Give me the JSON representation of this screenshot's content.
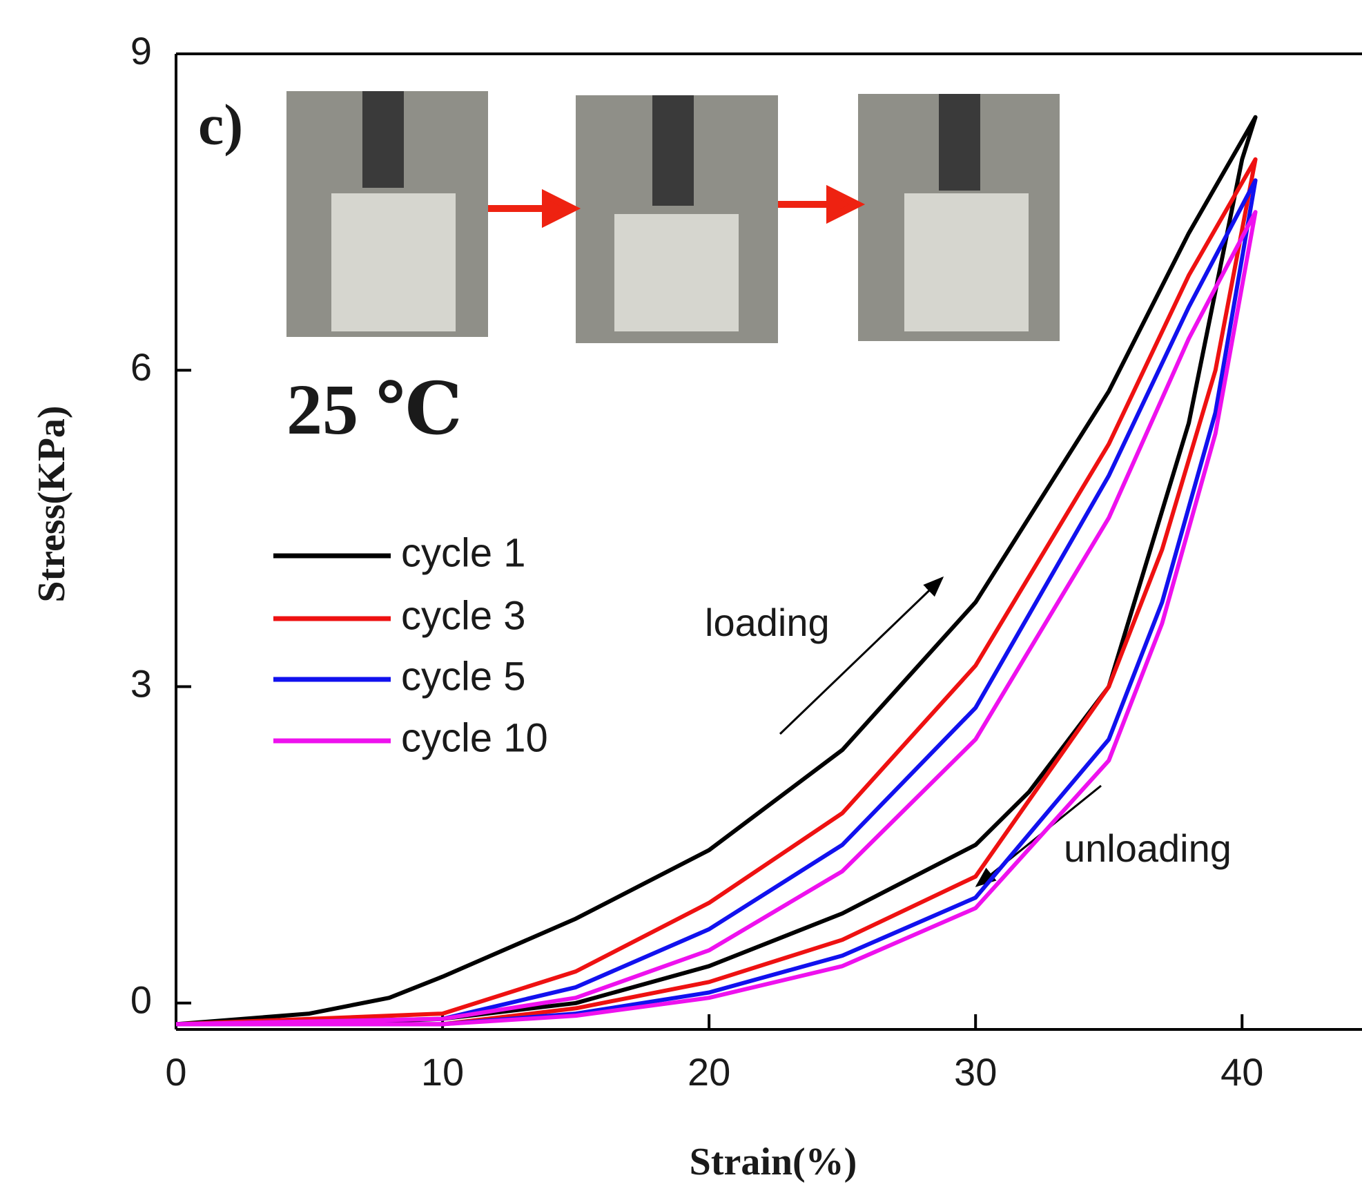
{
  "chart_data": {
    "type": "line",
    "x_label": "Strain(%)",
    "y_label": "Stress(KPa)",
    "annotations": {
      "panel": "c)",
      "temperature": "25 ℃",
      "loading": "loading",
      "unloading": "unloading"
    },
    "xlim": [
      0,
      44.5
    ],
    "xticks": [
      0,
      10,
      20,
      30,
      40
    ],
    "ylim": [
      -0.25,
      9
    ],
    "yticks": [
      0,
      3,
      6,
      9
    ],
    "legend": "upper left",
    "series": [
      {
        "name": "cycle 1",
        "color": "#000000",
        "x": [
          0,
          5,
          8,
          10,
          15,
          20,
          25,
          30,
          35,
          38,
          40.5,
          40,
          38,
          35,
          32,
          30,
          25,
          20,
          15,
          10,
          5,
          0
        ],
        "values": [
          -0.2,
          -0.1,
          0.05,
          0.25,
          0.8,
          1.45,
          2.4,
          3.8,
          5.8,
          7.3,
          8.4,
          8,
          5.5,
          3,
          2,
          1.5,
          0.85,
          0.35,
          0,
          -0.15,
          -0.2,
          -0.2
        ]
      },
      {
        "name": "cycle 3",
        "color": "#ee1111",
        "x": [
          0,
          10,
          15,
          20,
          25,
          30,
          35,
          38,
          40.5,
          39,
          37,
          35,
          30,
          25,
          20,
          15,
          10,
          0
        ],
        "values": [
          -0.2,
          -0.1,
          0.3,
          0.95,
          1.8,
          3.2,
          5.3,
          6.9,
          8,
          6,
          4.3,
          3,
          1.2,
          0.6,
          0.2,
          -0.05,
          -0.2,
          -0.2
        ]
      },
      {
        "name": "cycle 5",
        "color": "#1111ee",
        "x": [
          0,
          10,
          15,
          20,
          25,
          30,
          35,
          38,
          40.5,
          39,
          37,
          35,
          30,
          25,
          20,
          15,
          10,
          0
        ],
        "values": [
          -0.2,
          -0.15,
          0.15,
          0.7,
          1.5,
          2.8,
          5,
          6.6,
          7.8,
          5.6,
          3.8,
          2.5,
          1,
          0.45,
          0.1,
          -0.1,
          -0.2,
          -0.2
        ]
      },
      {
        "name": "cycle 10",
        "color": "#ee11ee",
        "x": [
          0,
          10,
          15,
          20,
          25,
          30,
          35,
          38,
          40.5,
          39,
          37,
          35,
          30,
          25,
          20,
          15,
          10,
          0
        ],
        "values": [
          -0.2,
          -0.15,
          0.05,
          0.5,
          1.25,
          2.5,
          4.6,
          6.3,
          7.5,
          5.4,
          3.6,
          2.3,
          0.9,
          0.35,
          0.05,
          -0.12,
          -0.2,
          -0.2
        ]
      }
    ]
  }
}
